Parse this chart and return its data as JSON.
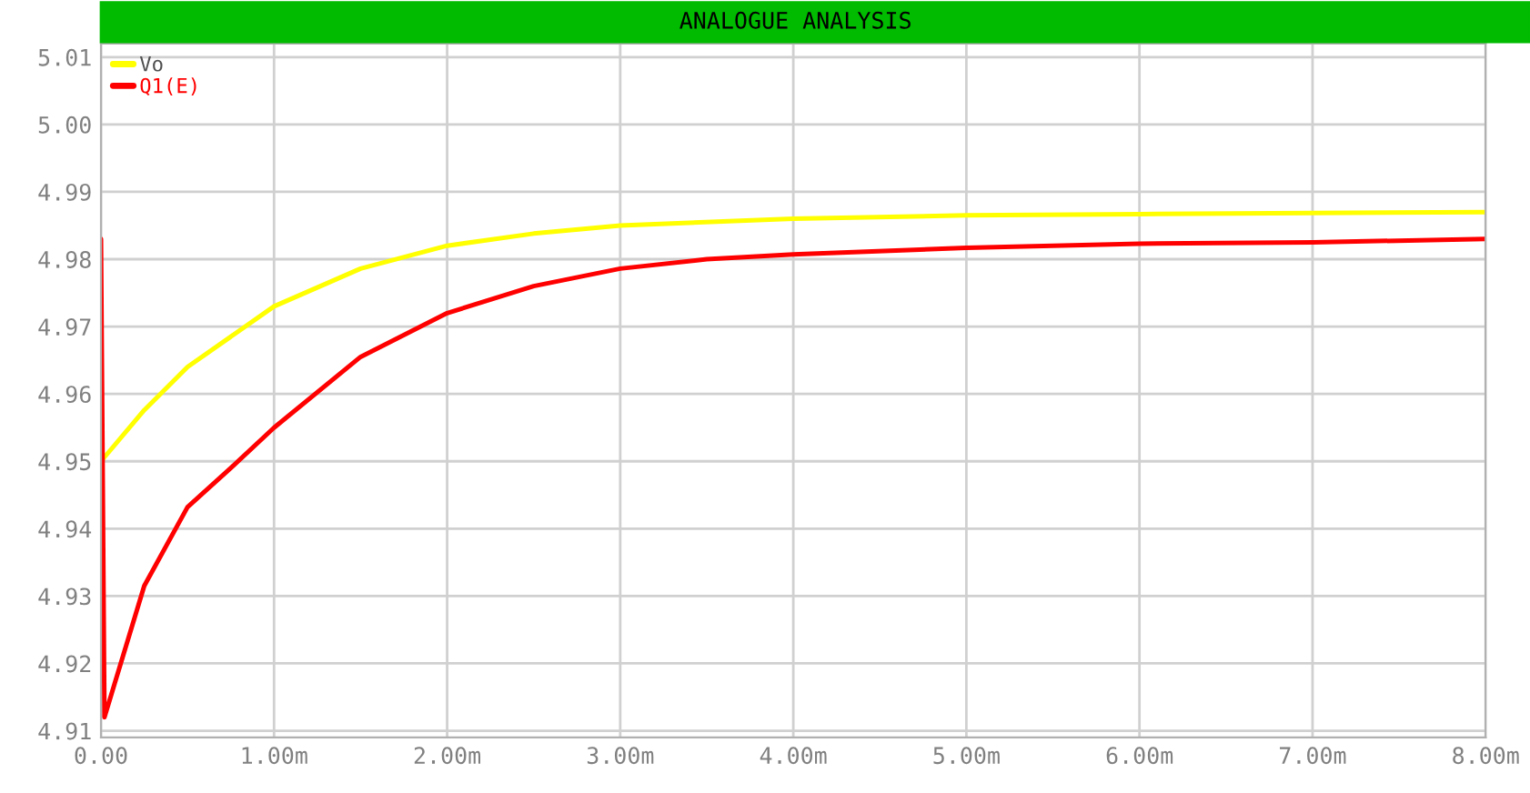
{
  "chart_data": {
    "type": "line",
    "title": "ANALOGUE ANALYSIS",
    "x": [
      0,
      0.02,
      0.25,
      0.5,
      0.75,
      1,
      1.5,
      2,
      2.5,
      3,
      3.5,
      4,
      5,
      6,
      7,
      8
    ],
    "series": [
      {
        "name": "Vo",
        "color": "#ffff00",
        "x": [
          0,
          0.25,
          0.5,
          1,
          1.5,
          2,
          2.5,
          3,
          4,
          5,
          6,
          8
        ],
        "values": [
          4.95,
          4.9576,
          4.964,
          4.973,
          4.9786,
          4.982,
          4.9838,
          4.985,
          4.986,
          4.9865,
          4.9867,
          4.987
        ]
      },
      {
        "name": "Q1(E)",
        "color": "#ff0000",
        "values": [
          4.983,
          4.912,
          4.9315,
          4.9432,
          4.949,
          4.955,
          4.9655,
          4.972,
          4.976,
          4.9786,
          4.98,
          4.9807,
          4.9817,
          4.9823,
          4.9825,
          4.983
        ]
      }
    ],
    "xlim": [
      0,
      8
    ],
    "ylim": [
      4.909,
      5.012
    ],
    "xticks": [
      {
        "value": 0,
        "label": "0.00"
      },
      {
        "value": 1,
        "label": "1.00m"
      },
      {
        "value": 2,
        "label": "2.00m"
      },
      {
        "value": 3,
        "label": "3.00m"
      },
      {
        "value": 4,
        "label": "4.00m"
      },
      {
        "value": 5,
        "label": "5.00m"
      },
      {
        "value": 6,
        "label": "6.00m"
      },
      {
        "value": 7,
        "label": "7.00m"
      },
      {
        "value": 8,
        "label": "8.00m"
      }
    ],
    "yticks": [
      {
        "value": 4.91,
        "label": "4.91"
      },
      {
        "value": 4.92,
        "label": "4.92"
      },
      {
        "value": 4.93,
        "label": "4.93"
      },
      {
        "value": 4.94,
        "label": "4.94"
      },
      {
        "value": 4.95,
        "label": "4.95"
      },
      {
        "value": 4.96,
        "label": "4.96"
      },
      {
        "value": 4.97,
        "label": "4.97"
      },
      {
        "value": 4.98,
        "label": "4.98"
      },
      {
        "value": 4.99,
        "label": "4.99"
      },
      {
        "value": 5.0,
        "label": "5.00"
      },
      {
        "value": 5.01,
        "label": "5.01"
      }
    ],
    "grid": true,
    "legend": "top left",
    "marker": "none",
    "line_style": "solid"
  }
}
